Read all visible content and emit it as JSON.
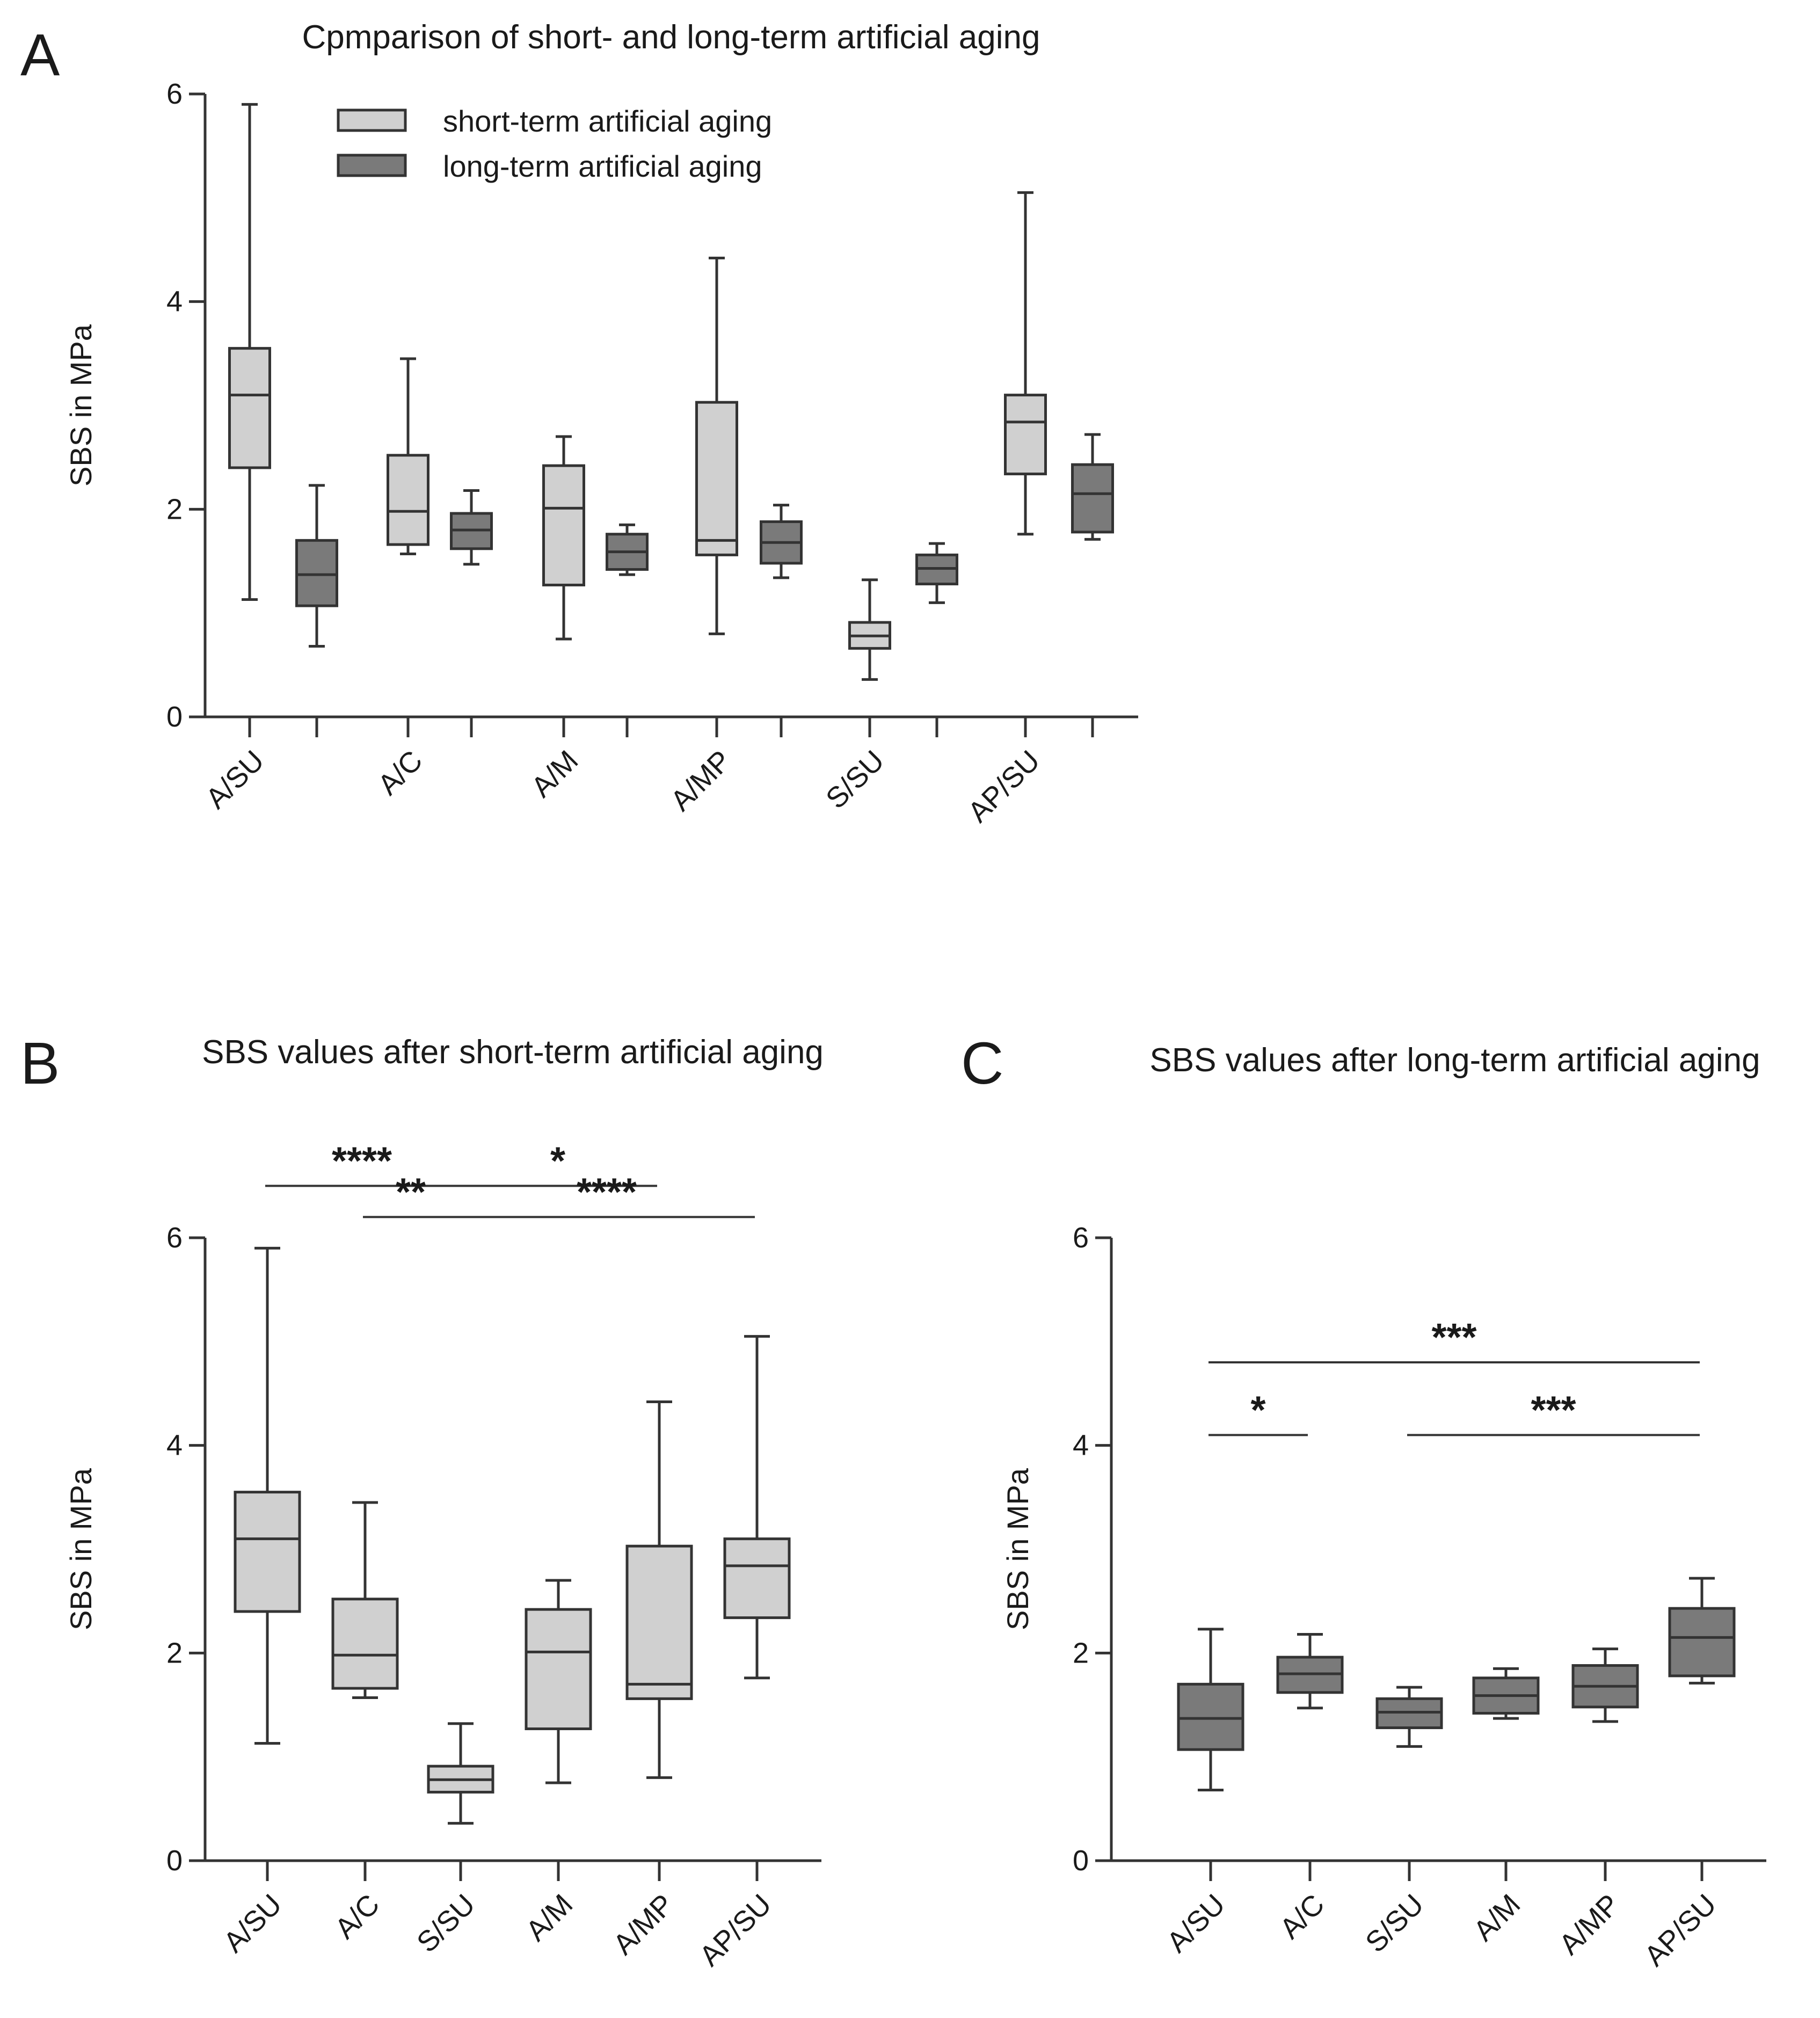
{
  "colors": {
    "short": "#d0d0d0",
    "long": "#7a7a7a",
    "stroke": "#333333",
    "text": "#1a1a1a"
  },
  "chart_data": [
    {
      "id": "A",
      "type": "box",
      "panel_label": "A",
      "title": "Cpmparison of short- and long-term artificial aging",
      "ylabel": "SBS in MPa",
      "xlabel": "",
      "ylim": [
        0,
        6
      ],
      "yticks": [
        "0",
        "2",
        "4",
        "6"
      ],
      "categories": [
        "A/SU",
        "A/C",
        "A/M",
        "A/MP",
        "S/SU",
        "AP/SU"
      ],
      "legend": [
        "short-term artificial aging",
        "long-term artificial aging"
      ],
      "legend_position": "top-center",
      "series": [
        {
          "name": "short-term artificial aging",
          "color_key": "short",
          "boxes": [
            {
              "min": 1.13,
              "q1": 2.4,
              "median": 3.1,
              "q3": 3.55,
              "max": 5.9
            },
            {
              "min": 1.57,
              "q1": 1.66,
              "median": 1.98,
              "q3": 2.52,
              "max": 3.45
            },
            {
              "min": 0.75,
              "q1": 1.27,
              "median": 2.01,
              "q3": 2.42,
              "max": 2.7
            },
            {
              "min": 0.8,
              "q1": 1.56,
              "median": 1.7,
              "q3": 3.03,
              "max": 4.42
            },
            {
              "min": 0.36,
              "q1": 0.66,
              "median": 0.78,
              "q3": 0.91,
              "max": 1.32
            },
            {
              "min": 1.76,
              "q1": 2.34,
              "median": 2.84,
              "q3": 3.1,
              "max": 5.05
            }
          ]
        },
        {
          "name": "long-term artificial aging",
          "color_key": "long",
          "boxes": [
            {
              "min": 0.68,
              "q1": 1.07,
              "median": 1.37,
              "q3": 1.7,
              "max": 2.23
            },
            {
              "min": 1.47,
              "q1": 1.62,
              "median": 1.8,
              "q3": 1.96,
              "max": 2.18
            },
            {
              "min": 1.37,
              "q1": 1.42,
              "median": 1.59,
              "q3": 1.76,
              "max": 1.85
            },
            {
              "min": 1.34,
              "q1": 1.48,
              "median": 1.68,
              "q3": 1.88,
              "max": 2.04
            },
            {
              "min": 1.1,
              "q1": 1.28,
              "median": 1.43,
              "q3": 1.56,
              "max": 1.67
            },
            {
              "min": 1.71,
              "q1": 1.78,
              "median": 2.15,
              "q3": 2.43,
              "max": 2.72
            }
          ]
        }
      ]
    },
    {
      "id": "B",
      "type": "box",
      "panel_label": "B",
      "title": "SBS values after short-term artificial aging",
      "ylabel": "SBS in MPa",
      "xlabel": "",
      "ylim": [
        0,
        6
      ],
      "yticks": [
        "0",
        "2",
        "4",
        "6"
      ],
      "categories": [
        "A/SU",
        "A/C",
        "S/SU",
        "A/M",
        "A/MP",
        "AP/SU"
      ],
      "series": [
        {
          "name": "short-term artificial aging",
          "color_key": "short",
          "boxes": [
            {
              "min": 1.13,
              "q1": 2.4,
              "median": 3.1,
              "q3": 3.55,
              "max": 5.9
            },
            {
              "min": 1.57,
              "q1": 1.66,
              "median": 1.98,
              "q3": 2.52,
              "max": 3.45
            },
            {
              "min": 0.36,
              "q1": 0.66,
              "median": 0.78,
              "q3": 0.91,
              "max": 1.32
            },
            {
              "min": 0.75,
              "q1": 1.27,
              "median": 2.01,
              "q3": 2.42,
              "max": 2.7
            },
            {
              "min": 0.8,
              "q1": 1.56,
              "median": 1.7,
              "q3": 3.03,
              "max": 4.42
            },
            {
              "min": 1.76,
              "q1": 2.34,
              "median": 2.84,
              "q3": 3.1,
              "max": 5.05
            }
          ]
        }
      ],
      "significance": [
        {
          "label": "****",
          "from": 0,
          "to": 2,
          "level": 6.5
        },
        {
          "label": "*",
          "from": 2,
          "to": 4,
          "level": 6.5
        },
        {
          "label": "**",
          "from": 1,
          "to": 2,
          "level": 6.2
        },
        {
          "label": "****",
          "from": 2,
          "to": 5,
          "level": 6.2
        }
      ]
    },
    {
      "id": "C",
      "type": "box",
      "panel_label": "C",
      "title": "SBS values after long-term artificial aging",
      "ylabel": "SBS in MPa",
      "xlabel": "",
      "ylim": [
        0,
        6
      ],
      "yticks": [
        "0",
        "2",
        "4",
        "6"
      ],
      "categories": [
        "A/SU",
        "A/C",
        "S/SU",
        "A/M",
        "A/MP",
        "AP/SU"
      ],
      "series": [
        {
          "name": "long-term artificial aging",
          "color_key": "long",
          "boxes": [
            {
              "min": 0.68,
              "q1": 1.07,
              "median": 1.37,
              "q3": 1.7,
              "max": 2.23
            },
            {
              "min": 1.47,
              "q1": 1.62,
              "median": 1.8,
              "q3": 1.96,
              "max": 2.18
            },
            {
              "min": 1.1,
              "q1": 1.28,
              "median": 1.43,
              "q3": 1.56,
              "max": 1.67
            },
            {
              "min": 1.37,
              "q1": 1.42,
              "median": 1.59,
              "q3": 1.76,
              "max": 1.85
            },
            {
              "min": 1.34,
              "q1": 1.48,
              "median": 1.68,
              "q3": 1.88,
              "max": 2.04
            },
            {
              "min": 1.71,
              "q1": 1.78,
              "median": 2.15,
              "q3": 2.43,
              "max": 2.72
            }
          ]
        }
      ],
      "significance": [
        {
          "label": "***",
          "from": 0,
          "to": 5,
          "level": 4.8
        },
        {
          "label": "*",
          "from": 0,
          "to": 1,
          "level": 4.1
        },
        {
          "label": "***",
          "from": 2,
          "to": 5,
          "level": 4.1
        }
      ]
    }
  ]
}
